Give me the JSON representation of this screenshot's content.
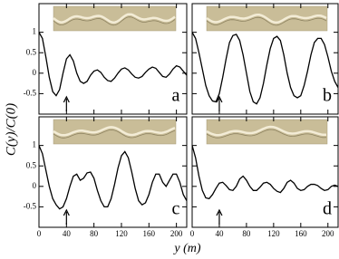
{
  "figure": {
    "ylabel": "C(y)/C(0)",
    "xlabel": "y (m)"
  },
  "chart_data": [
    {
      "type": "line",
      "panel_label": "a",
      "color": "#000000",
      "marker_x": 40,
      "x": [
        0,
        5,
        10,
        15,
        20,
        25,
        30,
        35,
        40,
        45,
        50,
        55,
        60,
        65,
        70,
        75,
        80,
        85,
        90,
        95,
        100,
        105,
        110,
        115,
        120,
        125,
        130,
        135,
        140,
        145,
        150,
        155,
        160,
        165,
        170,
        175,
        180,
        185,
        190,
        195,
        200,
        205,
        210,
        215
      ],
      "values": [
        1,
        0.85,
        0.4,
        -0.1,
        -0.45,
        -0.55,
        -0.4,
        0,
        0.35,
        0.45,
        0.3,
        0,
        -0.2,
        -0.25,
        -0.2,
        -0.05,
        0.05,
        0.08,
        0.02,
        -0.1,
        -0.18,
        -0.2,
        -0.12,
        0,
        0.1,
        0.13,
        0.08,
        -0.02,
        -0.1,
        -0.12,
        -0.08,
        0.02,
        0.1,
        0.15,
        0.12,
        0.02,
        -0.08,
        -0.1,
        -0.02,
        0.1,
        0.18,
        0.15,
        0.05,
        -0.05
      ],
      "xlim": [
        0,
        215
      ],
      "xticks": [
        0,
        40,
        80,
        120,
        160,
        200
      ],
      "ylim": [
        -1,
        1.7
      ],
      "yticks": [
        -0.5,
        0,
        0.5,
        1
      ]
    },
    {
      "type": "line",
      "panel_label": "b",
      "color": "#000000",
      "marker_x": 40,
      "x": [
        0,
        5,
        10,
        15,
        20,
        25,
        30,
        35,
        40,
        45,
        50,
        55,
        60,
        65,
        70,
        75,
        80,
        85,
        90,
        95,
        100,
        105,
        110,
        115,
        120,
        125,
        130,
        135,
        140,
        145,
        150,
        155,
        160,
        165,
        170,
        175,
        180,
        185,
        190,
        195,
        200,
        205,
        210,
        215
      ],
      "values": [
        1,
        0.85,
        0.5,
        0.1,
        -0.3,
        -0.55,
        -0.68,
        -0.7,
        -0.5,
        -0.1,
        0.35,
        0.75,
        0.92,
        0.95,
        0.8,
        0.45,
        0,
        -0.45,
        -0.7,
        -0.75,
        -0.6,
        -0.25,
        0.2,
        0.6,
        0.85,
        0.9,
        0.8,
        0.45,
        0,
        -0.35,
        -0.55,
        -0.6,
        -0.55,
        -0.3,
        0.05,
        0.45,
        0.75,
        0.85,
        0.85,
        0.7,
        0.4,
        0.05,
        -0.2,
        -0.35
      ],
      "xlim": [
        0,
        215
      ],
      "xticks": [
        0,
        40,
        80,
        120,
        160,
        200
      ],
      "ylim": [
        -1,
        1.7
      ],
      "yticks": [
        -0.5,
        0,
        0.5,
        1
      ]
    },
    {
      "type": "line",
      "panel_label": "c",
      "color": "#000000",
      "marker_x": 40,
      "x": [
        0,
        5,
        10,
        15,
        20,
        25,
        30,
        35,
        40,
        45,
        50,
        55,
        60,
        65,
        70,
        75,
        80,
        85,
        90,
        95,
        100,
        105,
        110,
        115,
        120,
        125,
        130,
        135,
        140,
        145,
        150,
        155,
        160,
        165,
        170,
        175,
        180,
        185,
        190,
        195,
        200,
        205,
        210,
        215
      ],
      "values": [
        1,
        0.8,
        0.4,
        0,
        -0.3,
        -0.45,
        -0.55,
        -0.5,
        -0.3,
        0,
        0.25,
        0.3,
        0.15,
        0.2,
        0.33,
        0.35,
        0.2,
        -0.1,
        -0.35,
        -0.5,
        -0.5,
        -0.3,
        0.05,
        0.45,
        0.75,
        0.85,
        0.7,
        0.35,
        -0.05,
        -0.35,
        -0.45,
        -0.4,
        -0.2,
        0.1,
        0.3,
        0.3,
        0.1,
        0,
        0.15,
        0.3,
        0.3,
        0.1,
        -0.2,
        -0.35
      ],
      "xlim": [
        0,
        215
      ],
      "xticks": [
        0,
        40,
        80,
        120,
        160,
        200
      ],
      "ylim": [
        -1,
        1.7
      ],
      "yticks": [
        -0.5,
        0,
        0.5,
        1
      ]
    },
    {
      "type": "line",
      "panel_label": "d",
      "color": "#000000",
      "marker_x": 40,
      "x": [
        0,
        5,
        10,
        15,
        20,
        25,
        30,
        35,
        40,
        45,
        50,
        55,
        60,
        65,
        70,
        75,
        80,
        85,
        90,
        95,
        100,
        105,
        110,
        115,
        120,
        125,
        130,
        135,
        140,
        145,
        150,
        155,
        160,
        165,
        170,
        175,
        180,
        185,
        190,
        195,
        200,
        205,
        210,
        215
      ],
      "values": [
        1,
        0.7,
        0.25,
        -0.1,
        -0.28,
        -0.3,
        -0.2,
        -0.05,
        0.08,
        0.1,
        0.02,
        -0.08,
        -0.1,
        0,
        0.18,
        0.25,
        0.15,
        0,
        -0.1,
        -0.1,
        -0.02,
        0.08,
        0.1,
        0.05,
        -0.05,
        -0.12,
        -0.15,
        -0.05,
        0.1,
        0.15,
        0.08,
        -0.05,
        -0.1,
        -0.08,
        0,
        0.05,
        0.05,
        0.02,
        -0.05,
        -0.1,
        -0.08,
        0,
        0.03,
        0
      ],
      "xlim": [
        0,
        215
      ],
      "xticks": [
        0,
        40,
        80,
        120,
        160,
        200
      ],
      "ylim": [
        -1,
        1.7
      ],
      "yticks": [
        -0.5,
        0,
        0.5,
        1
      ]
    }
  ]
}
